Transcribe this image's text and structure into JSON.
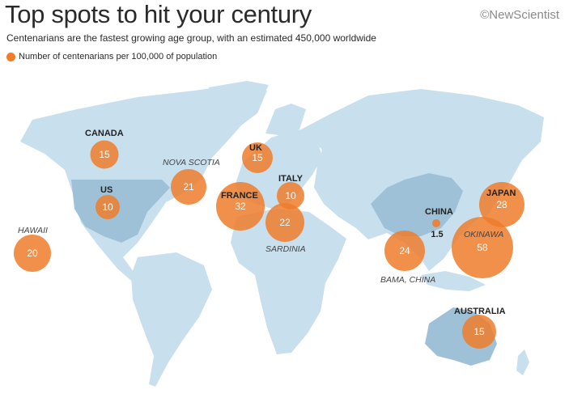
{
  "title": "Top spots to hit your century",
  "subtitle": "Centenarians are the fastest growing age group, with an estimated 450,000 worldwide",
  "credit": "©NewScientist",
  "legend": {
    "label": "Number of centenarians per 100,000 of population"
  },
  "colors": {
    "bubble": "#ef7d2c",
    "land": "#c8dfee",
    "land_highlight": "#9ec1d8",
    "ocean": "#ffffff"
  },
  "places": [
    {
      "id": "canada",
      "label": "CANADA",
      "value": "15",
      "style": "country"
    },
    {
      "id": "us",
      "label": "US",
      "value": "10",
      "style": "country"
    },
    {
      "id": "nova-scotia",
      "label": "NOVA SCOTIA",
      "value": "21",
      "style": "region"
    },
    {
      "id": "hawaii",
      "label": "HAWAII",
      "value": "20",
      "style": "region"
    },
    {
      "id": "uk",
      "label": "UK",
      "value": "15",
      "style": "country"
    },
    {
      "id": "france",
      "label": "FRANCE",
      "value": "32",
      "style": "country"
    },
    {
      "id": "italy",
      "label": "ITALY",
      "value": "10",
      "style": "country"
    },
    {
      "id": "sardinia",
      "label": "SARDINIA",
      "value": "22",
      "style": "region"
    },
    {
      "id": "china",
      "label": "CHINA",
      "value": "1.5",
      "style": "country"
    },
    {
      "id": "bama-china",
      "label": "BAMA, CHINA",
      "value": "24",
      "style": "region"
    },
    {
      "id": "japan",
      "label": "JAPAN",
      "value": "28",
      "style": "country"
    },
    {
      "id": "okinawa",
      "label": "OKINAWA",
      "value": "58",
      "style": "region"
    },
    {
      "id": "australia",
      "label": "AUSTRALIA",
      "value": "15",
      "style": "country"
    }
  ]
}
